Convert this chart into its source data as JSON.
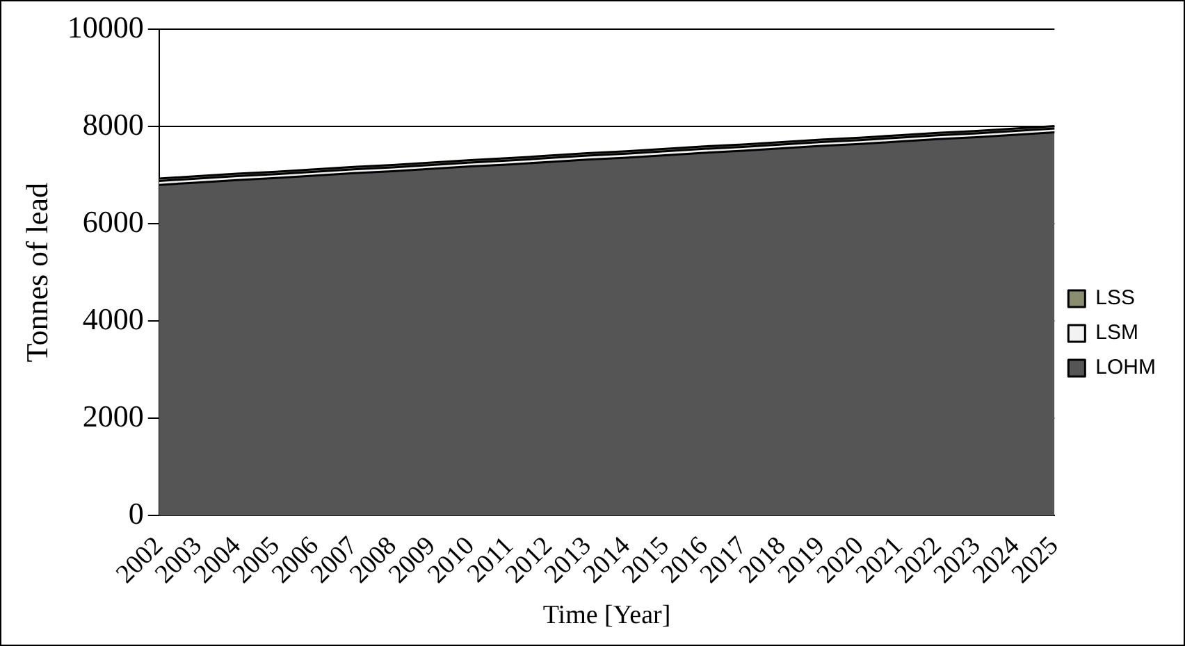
{
  "chart_data": {
    "type": "area",
    "stacked": true,
    "xlabel": "Time [Year]",
    "ylabel": "Tonnes of lead",
    "categories": [
      "2002",
      "2003",
      "2004",
      "2005",
      "2006",
      "2007",
      "2008",
      "2009",
      "2010",
      "2011",
      "2012",
      "2013",
      "2014",
      "2015",
      "2016",
      "2017",
      "2018",
      "2019",
      "2020",
      "2021",
      "2022",
      "2023",
      "2024",
      "2025"
    ],
    "series": [
      {
        "name": "LOHM",
        "color": "#555555",
        "values": [
          6800,
          6850,
          6900,
          6940,
          6990,
          7040,
          7080,
          7130,
          7180,
          7220,
          7270,
          7320,
          7360,
          7410,
          7460,
          7500,
          7550,
          7600,
          7640,
          7690,
          7740,
          7780,
          7830,
          7880
        ]
      },
      {
        "name": "LSM",
        "color": "#f2f2f2",
        "values": [
          80,
          80,
          80,
          80,
          80,
          80,
          80,
          80,
          80,
          80,
          80,
          80,
          80,
          80,
          80,
          80,
          80,
          80,
          80,
          80,
          80,
          80,
          80,
          80
        ]
      },
      {
        "name": "LSS",
        "color": "#8c8c6e",
        "values": [
          50,
          50,
          50,
          50,
          50,
          50,
          50,
          50,
          50,
          50,
          50,
          50,
          50,
          50,
          50,
          50,
          50,
          50,
          50,
          50,
          50,
          50,
          50,
          50
        ]
      }
    ],
    "ylim": [
      0,
      10000
    ],
    "yticks": [
      0,
      2000,
      4000,
      6000,
      8000,
      10000
    ],
    "grid": "y",
    "legend": "right"
  }
}
